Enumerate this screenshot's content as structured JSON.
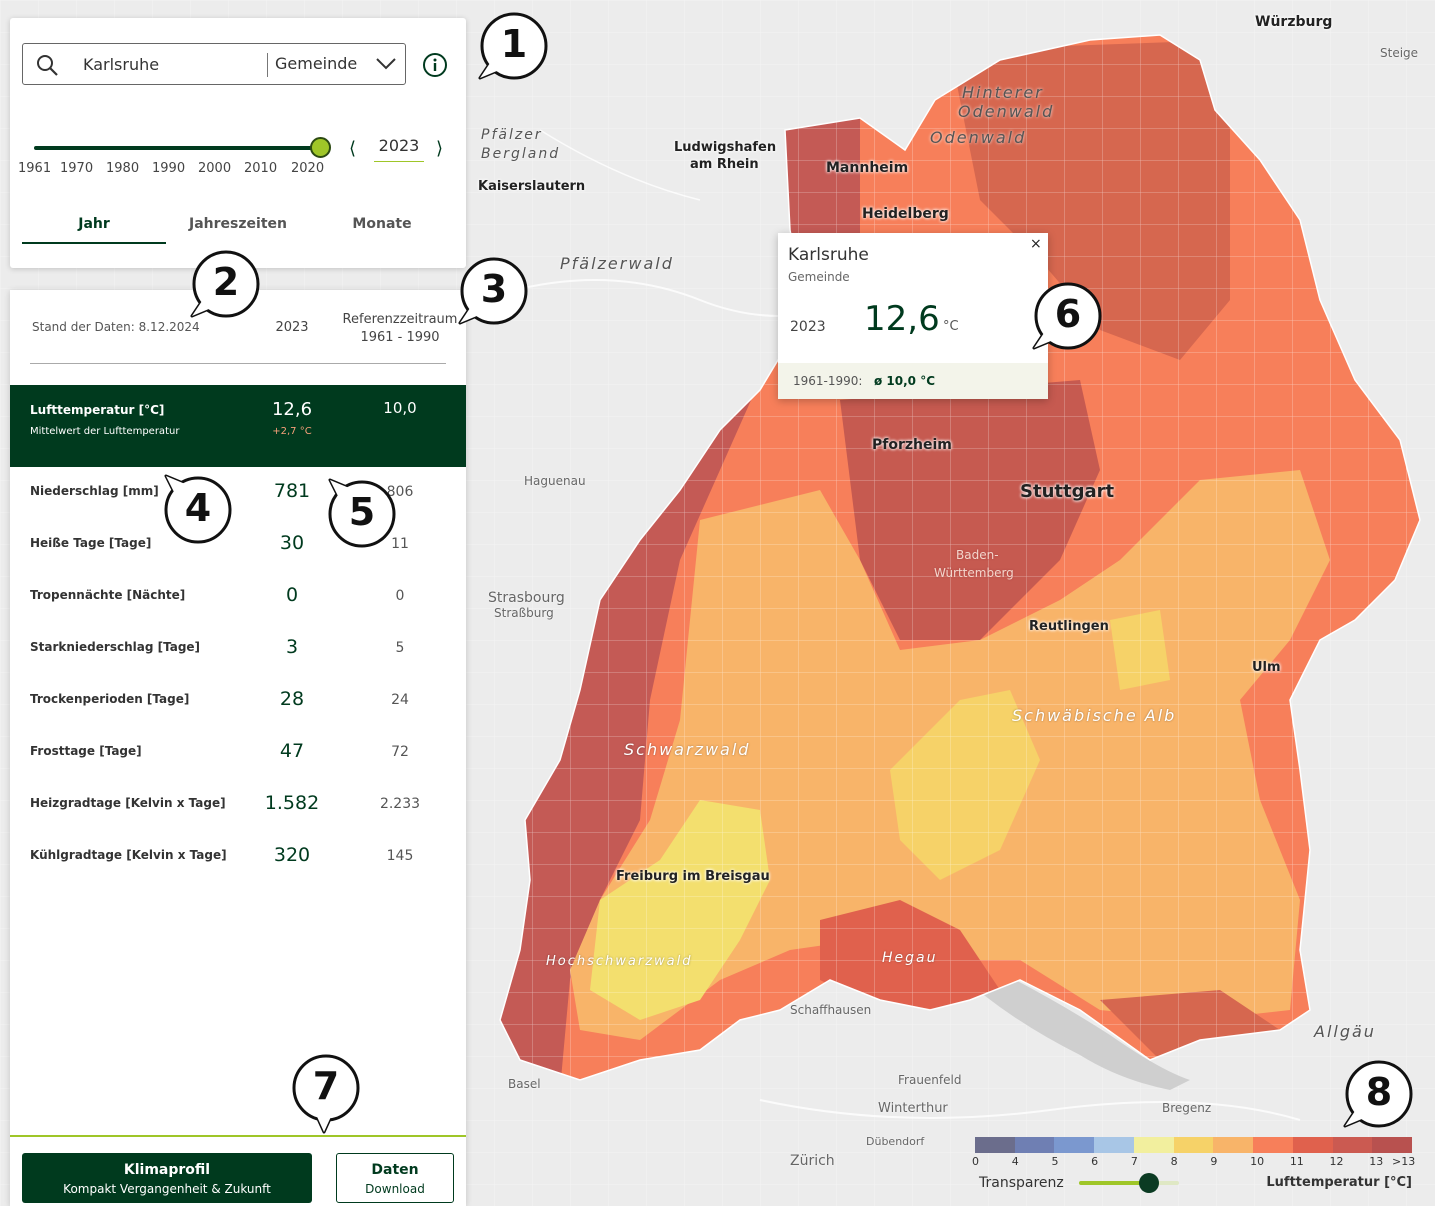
{
  "search": {
    "value": "Karlsruhe",
    "level": "Gemeinde"
  },
  "timeline": {
    "ticks": [
      "1961",
      "1970",
      "1980",
      "1990",
      "2000",
      "2010",
      "2020"
    ],
    "selected_year": "2023",
    "position_fraction": 1.0
  },
  "tabs": [
    {
      "label": "Jahr",
      "active": true
    },
    {
      "label": "Jahreszeiten",
      "active": false
    },
    {
      "label": "Monate",
      "active": false
    }
  ],
  "data_table": {
    "data_date": "Stand der Daten: 8.12.2024",
    "col_year": "2023",
    "col_ref_line1": "Referenzzeitraum",
    "col_ref_line2": "1961 - 1990",
    "highlight": {
      "label": "Lufttemperatur [°C]",
      "sublabel": "Mittelwert der Lufttemperatur",
      "value": "12,6",
      "delta": "+2,7 °C",
      "ref": "10,0"
    },
    "rows": [
      {
        "label": "Niederschlag [mm]",
        "value": "781",
        "ref": "806"
      },
      {
        "label": "Heiße Tage [Tage]",
        "value": "30",
        "ref": "11"
      },
      {
        "label": "Tropennächte [Nächte]",
        "value": "0",
        "ref": "0"
      },
      {
        "label": "Starkniederschlag [Tage]",
        "value": "3",
        "ref": "5"
      },
      {
        "label": "Trockenperioden [Tage]",
        "value": "28",
        "ref": "24"
      },
      {
        "label": "Frosttage [Tage]",
        "value": "47",
        "ref": "72"
      },
      {
        "label": "Heizgradtage [Kelvin x Tage]",
        "value": "1.582",
        "ref": "2.233"
      },
      {
        "label": "Kühlgradtage [Kelvin x Tage]",
        "value": "320",
        "ref": "145"
      }
    ]
  },
  "buttons": {
    "klimaprofil_title": "Klimaprofil",
    "klimaprofil_sub": "Kompakt Vergangenheit & Zukunft",
    "daten_title": "Daten",
    "daten_sub": "Download"
  },
  "popup": {
    "name": "Karlsruhe",
    "level": "Gemeinde",
    "close": "×",
    "year": "2023",
    "value": "12,6",
    "unit": "°C",
    "ref_label": "1961-1990:",
    "ref_value": "ø 10,0 °C"
  },
  "legend": {
    "colors": [
      "#6b6d8c",
      "#6f7fb3",
      "#7b98cf",
      "#a8c6e6",
      "#f2ef9e",
      "#f6d268",
      "#f8b469",
      "#f77f5a",
      "#e0614d",
      "#cb5a51",
      "#b8514f"
    ],
    "labels": [
      "0",
      "4",
      "5",
      "6",
      "7",
      "8",
      "9",
      "10",
      "11",
      "12",
      "13",
      ">13"
    ],
    "transparency_label": "Transparenz",
    "transparency_fraction": 0.7,
    "title": "Lufttemperatur [°C]"
  },
  "map_labels": {
    "cities": [
      "Mannheim",
      "Heidelberg",
      "Pforzheim",
      "Stuttgart",
      "Reutlingen",
      "Ulm",
      "Freiburg im Breisgau",
      "Würzburg",
      "Kaiserslautern"
    ],
    "towns": [
      "Ludwigshafen",
      "am Rhein",
      "Haguenau",
      "Strasbourg",
      "Straßburg",
      "Basel",
      "Zürich",
      "Winterthur",
      "Frauenfeld",
      "Dübendorf",
      "Bregenz",
      "Schaffhausen",
      "Baden-",
      "Württemberg",
      "Steige"
    ],
    "regions": [
      "Pfälzerwald",
      "Pfälzer",
      "Bergland",
      "Hinterer",
      "Odenwald",
      "Odenwald",
      "Schwarzwald",
      "Schwäbische Alb",
      "Hochschwarzwald",
      "Hegau",
      "Allgäu"
    ]
  },
  "annotations": [
    "1",
    "2",
    "3",
    "4",
    "5",
    "6",
    "7",
    "8"
  ]
}
